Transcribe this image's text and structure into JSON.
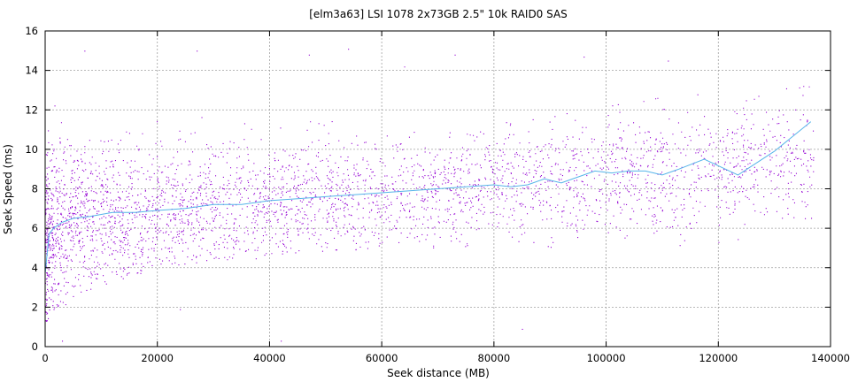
{
  "chart_data": {
    "type": "scatter",
    "title": "[elm3a63] LSI 1078 2x73GB 2.5\" 10k RAID0 SAS",
    "xlabel": "Seek distance (MB)",
    "ylabel": "Seek Speed (ms)",
    "xlim": [
      0,
      140000
    ],
    "ylim": [
      0,
      16
    ],
    "xticks": [
      "0",
      "20000",
      "40000",
      "60000",
      "80000",
      "100000",
      "120000",
      "140000"
    ],
    "yticks": [
      "0",
      "2",
      "4",
      "6",
      "8",
      "10",
      "12",
      "14",
      "16"
    ],
    "grid": true,
    "colors": {
      "points": "#9400d3",
      "trend": "#56b4e9"
    },
    "series": [
      {
        "type": "scatter",
        "description": "individual seeks (dense cloud); band spans roughly 1-13 ms, median rising from ~6 to ~9 ms",
        "band": [
          {
            "x": 0,
            "low": 1.2,
            "mid": 5.6,
            "high": 13.0
          },
          {
            "x": 5000,
            "low": 2.5,
            "mid": 6.5,
            "high": 12.5
          },
          {
            "x": 20000,
            "low": 4.0,
            "mid": 6.9,
            "high": 12.0
          },
          {
            "x": 40000,
            "low": 4.5,
            "mid": 7.4,
            "high": 12.2
          },
          {
            "x": 60000,
            "low": 5.0,
            "mid": 7.8,
            "high": 12.0
          },
          {
            "x": 80000,
            "low": 5.0,
            "mid": 8.2,
            "high": 12.2
          },
          {
            "x": 100000,
            "low": 5.0,
            "mid": 8.7,
            "high": 12.5
          },
          {
            "x": 120000,
            "low": 5.0,
            "mid": 9.0,
            "high": 13.0
          },
          {
            "x": 136000,
            "low": 5.0,
            "mid": 9.5,
            "high": 13.5
          }
        ],
        "outliers": [
          {
            "x": 7000,
            "y": 15.0
          },
          {
            "x": 27000,
            "y": 15.0
          },
          {
            "x": 54000,
            "y": 15.1
          },
          {
            "x": 47000,
            "y": 14.8
          },
          {
            "x": 64000,
            "y": 14.2
          },
          {
            "x": 73000,
            "y": 14.8
          },
          {
            "x": 96000,
            "y": 14.7
          },
          {
            "x": 111000,
            "y": 14.5
          },
          {
            "x": 3000,
            "y": 0.3
          },
          {
            "x": 24000,
            "y": 1.9
          },
          {
            "x": 42000,
            "y": 0.3
          },
          {
            "x": 85000,
            "y": 0.9
          }
        ]
      },
      {
        "type": "line",
        "description": "average seek time",
        "x": [
          0,
          700,
          1500,
          3000,
          5000,
          8000,
          12000,
          16000,
          20000,
          25000,
          30000,
          35000,
          40000,
          45000,
          50000,
          55000,
          60000,
          65000,
          70000,
          75000,
          80000,
          83000,
          86000,
          89000,
          92000,
          95000,
          98000,
          101000,
          104000,
          107000,
          110000,
          113000,
          117500,
          123500,
          130000,
          136500
        ],
        "y": [
          3.7,
          5.7,
          6.0,
          6.3,
          6.5,
          6.6,
          6.8,
          6.8,
          6.9,
          7.0,
          7.2,
          7.2,
          7.4,
          7.5,
          7.6,
          7.7,
          7.8,
          7.9,
          8.0,
          8.1,
          8.2,
          8.1,
          8.2,
          8.5,
          8.3,
          8.6,
          8.9,
          8.8,
          8.9,
          8.9,
          8.7,
          9.0,
          9.5,
          8.7,
          9.9,
          11.4
        ]
      }
    ]
  }
}
